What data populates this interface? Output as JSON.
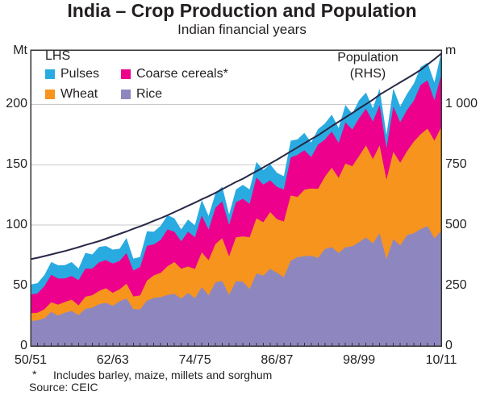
{
  "title": "India – Crop Production and Population",
  "subtitle": "Indian financial years",
  "legend": {
    "header": "LHS",
    "items": [
      {
        "label": "Pulses",
        "color": "#29abe2"
      },
      {
        "label": "Coarse cereals*",
        "color": "#ec008c"
      },
      {
        "label": "Wheat",
        "color": "#f7941e"
      },
      {
        "label": "Rice",
        "color": "#8e87bf"
      }
    ]
  },
  "line_label": {
    "line1": "Population",
    "line2": "(RHS)"
  },
  "axes": {
    "left": {
      "unit": "Mt",
      "ticks": [
        {
          "label": "0",
          "value": 0
        },
        {
          "label": "50",
          "value": 50
        },
        {
          "label": "100",
          "value": 100
        },
        {
          "label": "150",
          "value": 150
        },
        {
          "label": "200",
          "value": 200
        }
      ]
    },
    "right": {
      "unit": "m",
      "ticks": [
        {
          "label": "0",
          "value": 0
        },
        {
          "label": "250",
          "value": 250
        },
        {
          "label": "500",
          "value": 500
        },
        {
          "label": "750",
          "value": 750
        },
        {
          "label": "1 000",
          "value": 1000
        }
      ]
    },
    "x": {
      "tick_labels": [
        {
          "label": "50/51",
          "index": 0
        },
        {
          "label": "62/63",
          "index": 12
        },
        {
          "label": "74/75",
          "index": 24
        },
        {
          "label": "86/87",
          "index": 36
        },
        {
          "label": "98/99",
          "index": 48
        },
        {
          "label": "10/11",
          "index": 60
        }
      ]
    }
  },
  "footnote": {
    "marker": "*",
    "text": "Includes barley, maize, millets and sorghum"
  },
  "source": "Source: CEIC",
  "chart_data": {
    "type": "area",
    "stacked": true,
    "x_start": "1950/51",
    "x_end": "2010/11",
    "points": 61,
    "lhs_range": [
      0,
      245
    ],
    "rhs_range": [
      0,
      1225
    ],
    "grid_on": true,
    "grid_values_lhs": [
      50,
      100,
      150,
      200
    ],
    "grid_color": "#c9c9c9",
    "frame_color": "#333333",
    "series": [
      {
        "name": "Rice",
        "type": "area",
        "axis": "LHS",
        "color": "#8e87bf",
        "values": [
          20.6,
          21.3,
          22.9,
          28.2,
          25.2,
          27.6,
          29.0,
          25.5,
          30.8,
          31.7,
          34.6,
          35.7,
          33.2,
          37.0,
          39.3,
          30.6,
          30.4,
          37.6,
          39.8,
          40.4,
          42.2,
          43.1,
          39.2,
          44.0,
          39.6,
          48.7,
          41.9,
          52.7,
          53.8,
          42.3,
          53.6,
          53.2,
          47.1,
          60.1,
          58.3,
          63.8,
          60.6,
          56.9,
          70.5,
          73.6,
          74.3,
          74.7,
          72.9,
          80.3,
          81.8,
          77.0,
          81.7,
          82.5,
          86.0,
          89.7,
          85.0,
          93.3,
          71.8,
          88.5,
          83.1,
          91.8,
          93.4,
          96.7,
          99.2,
          89.1,
          95.3
        ]
      },
      {
        "name": "Wheat",
        "type": "area",
        "axis": "LHS",
        "color": "#f7941e",
        "values": [
          6.5,
          6.2,
          7.5,
          8.0,
          9.0,
          8.8,
          9.4,
          8.0,
          10.0,
          10.3,
          11.0,
          12.1,
          10.8,
          9.9,
          12.3,
          10.4,
          11.4,
          16.5,
          18.7,
          20.1,
          23.8,
          26.4,
          24.7,
          21.8,
          24.1,
          28.8,
          29.0,
          31.7,
          35.5,
          31.8,
          36.3,
          37.5,
          42.8,
          45.5,
          44.1,
          47.1,
          44.3,
          46.2,
          54.1,
          49.8,
          55.1,
          55.7,
          57.2,
          59.8,
          65.8,
          62.1,
          69.4,
          66.3,
          71.3,
          76.4,
          69.7,
          72.8,
          65.8,
          72.2,
          68.6,
          69.4,
          75.8,
          78.6,
          80.7,
          80.8,
          85.9
        ]
      },
      {
        "name": "Coarse cereals*",
        "type": "area",
        "axis": "LHS",
        "color": "#ec008c",
        "values": [
          15.4,
          16.1,
          19.1,
          22.7,
          21.6,
          19.5,
          19.5,
          21.0,
          23.2,
          22.0,
          23.7,
          23.2,
          24.3,
          23.5,
          25.4,
          21.4,
          23.6,
          28.8,
          25.6,
          27.3,
          30.5,
          25.0,
          22.7,
          28.8,
          26.2,
          30.4,
          25.4,
          30.0,
          30.4,
          26.1,
          29.0,
          31.1,
          27.8,
          33.9,
          31.2,
          26.2,
          26.8,
          26.4,
          31.5,
          34.8,
          32.7,
          26.0,
          36.6,
          30.8,
          29.9,
          29.0,
          34.1,
          30.4,
          31.3,
          30.3,
          31.1,
          33.4,
          26.1,
          37.6,
          33.5,
          34.1,
          33.9,
          40.8,
          40.0,
          33.6,
          43.4
        ]
      },
      {
        "name": "Pulses",
        "type": "area",
        "axis": "LHS",
        "color": "#29abe2",
        "values": [
          8.4,
          8.4,
          9.2,
          10.6,
          11.0,
          11.0,
          11.5,
          9.6,
          13.1,
          11.8,
          12.7,
          11.8,
          11.5,
          10.1,
          12.4,
          9.9,
          8.3,
          12.1,
          10.4,
          11.7,
          11.8,
          11.1,
          9.9,
          10.0,
          10.0,
          13.0,
          11.4,
          12.0,
          12.2,
          8.6,
          10.6,
          11.5,
          11.9,
          12.9,
          12.0,
          13.4,
          11.7,
          11.0,
          13.8,
          12.9,
          14.3,
          12.0,
          12.8,
          13.3,
          14.0,
          12.3,
          14.2,
          13.0,
          14.9,
          13.4,
          11.1,
          13.4,
          11.1,
          14.9,
          13.1,
          13.4,
          14.2,
          14.8,
          14.6,
          14.7,
          18.2
        ]
      },
      {
        "name": "Population",
        "type": "line",
        "axis": "RHS",
        "color": "#282847",
        "values": [
          359,
          365,
          372,
          379,
          386,
          393,
          401,
          409,
          418,
          426,
          434,
          444,
          454,
          464,
          474,
          485,
          495,
          506,
          518,
          529,
          541,
          554,
          567,
          580,
          593,
          607,
          620,
          634,
          649,
          664,
          679,
          692,
          708,
          723,
          739,
          755,
          771,
          788,
          805,
          822,
          839,
          856,
          872,
          891,
          910,
          928,
          946,
          964,
          983,
          1001,
          1019,
          1040,
          1057,
          1074,
          1091,
          1108,
          1125,
          1143,
          1165,
          1187,
          1210
        ]
      }
    ]
  }
}
